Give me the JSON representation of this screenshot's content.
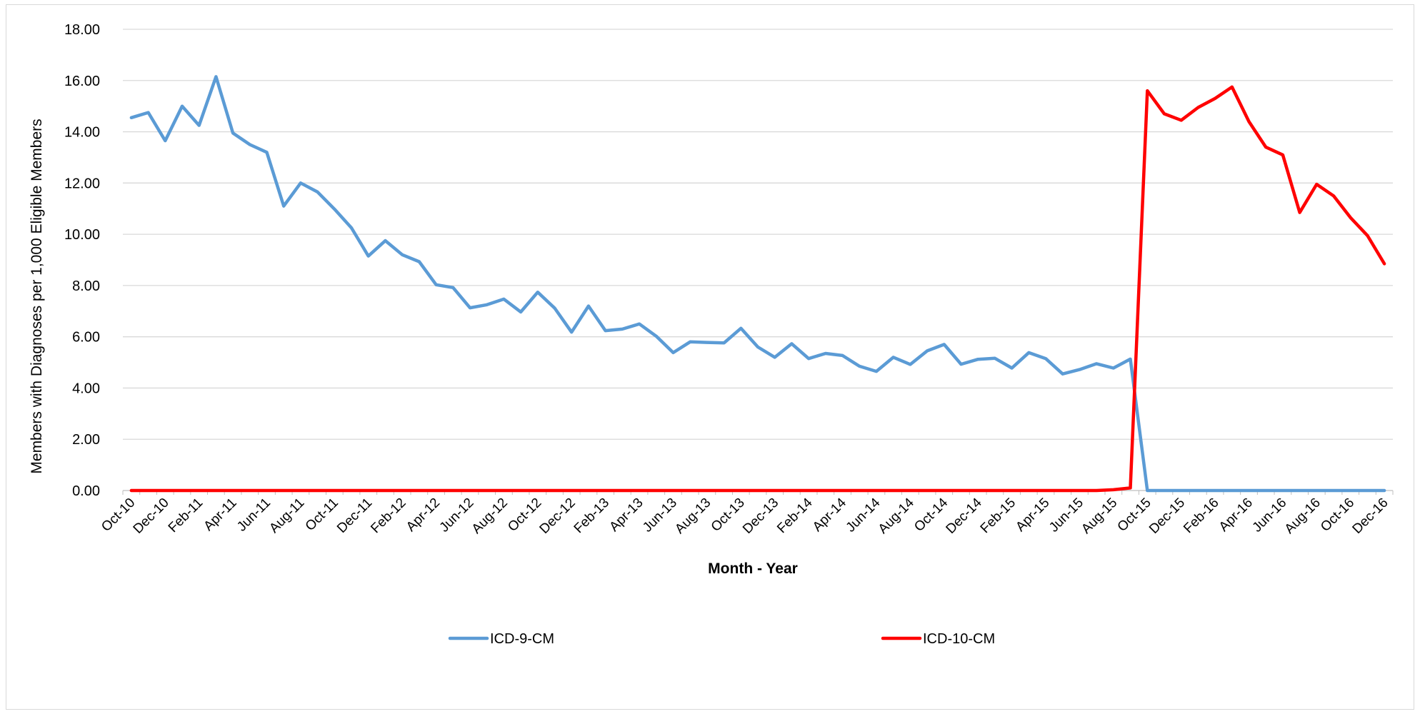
{
  "chart_data": {
    "type": "line",
    "xlabel": "Month - Year",
    "ylabel": "Members with Diagnoses per 1,000 Eligible Members",
    "ylim": [
      0,
      18
    ],
    "yticks": [
      "0.00",
      "2.00",
      "4.00",
      "6.00",
      "8.00",
      "10.00",
      "12.00",
      "14.00",
      "16.00",
      "18.00"
    ],
    "grid": true,
    "legend_position": "bottom",
    "categories": [
      "Oct-10",
      "Nov-10",
      "Dec-10",
      "Jan-11",
      "Feb-11",
      "Mar-11",
      "Apr-11",
      "May-11",
      "Jun-11",
      "Jul-11",
      "Aug-11",
      "Sep-11",
      "Oct-11",
      "Nov-11",
      "Dec-11",
      "Jan-12",
      "Feb-12",
      "Mar-12",
      "Apr-12",
      "May-12",
      "Jun-12",
      "Jul-12",
      "Aug-12",
      "Sep-12",
      "Oct-12",
      "Nov-12",
      "Dec-12",
      "Jan-13",
      "Feb-13",
      "Mar-13",
      "Apr-13",
      "May-13",
      "Jun-13",
      "Jul-13",
      "Aug-13",
      "Sep-13",
      "Oct-13",
      "Nov-13",
      "Dec-13",
      "Jan-14",
      "Feb-14",
      "Mar-14",
      "Apr-14",
      "May-14",
      "Jun-14",
      "Jul-14",
      "Aug-14",
      "Sep-14",
      "Oct-14",
      "Nov-14",
      "Dec-14",
      "Jan-15",
      "Feb-15",
      "Mar-15",
      "Apr-15",
      "May-15",
      "Jun-15",
      "Jul-15",
      "Aug-15",
      "Sep-15",
      "Oct-15",
      "Nov-15",
      "Dec-15",
      "Jan-16",
      "Feb-16",
      "Mar-16",
      "Apr-16",
      "May-16",
      "Jun-16",
      "Jul-16",
      "Aug-16",
      "Sep-16",
      "Oct-16",
      "Nov-16",
      "Dec-16"
    ],
    "tick_labels": [
      "Oct-10",
      "Dec-10",
      "Feb-11",
      "Apr-11",
      "Jun-11",
      "Aug-11",
      "Oct-11",
      "Dec-11",
      "Feb-12",
      "Apr-12",
      "Jun-12",
      "Aug-12",
      "Oct-12",
      "Dec-12",
      "Feb-13",
      "Apr-13",
      "Jun-13",
      "Aug-13",
      "Oct-13",
      "Dec-13",
      "Feb-14",
      "Apr-14",
      "Jun-14",
      "Aug-14",
      "Oct-14",
      "Dec-14",
      "Feb-15",
      "Apr-15",
      "Jun-15",
      "Aug-15",
      "Oct-15",
      "Dec-15",
      "Feb-16",
      "Apr-16",
      "Jun-16",
      "Aug-16",
      "Oct-16",
      "Dec-16"
    ],
    "series": [
      {
        "name": "ICD-9-CM",
        "color": "#5b9bd5",
        "values": [
          14.55,
          14.75,
          13.65,
          15.0,
          14.25,
          16.15,
          13.95,
          13.5,
          13.2,
          11.1,
          12.0,
          11.65,
          10.98,
          10.25,
          9.15,
          9.75,
          9.2,
          8.93,
          8.03,
          7.92,
          7.13,
          7.25,
          7.47,
          6.97,
          7.74,
          7.12,
          6.18,
          7.2,
          6.24,
          6.3,
          6.5,
          6.02,
          5.38,
          5.8,
          5.78,
          5.76,
          6.33,
          5.6,
          5.2,
          5.73,
          5.15,
          5.35,
          5.27,
          4.85,
          4.65,
          5.2,
          4.92,
          5.45,
          5.7,
          4.93,
          5.12,
          5.16,
          4.78,
          5.38,
          5.15,
          4.55,
          4.72,
          4.95,
          4.78,
          5.13,
          0.0,
          0.0,
          0.0,
          0.0,
          0.0,
          0.0,
          0.0,
          0.0,
          0.0,
          0.0,
          0.0,
          0.0,
          0.0,
          0.0,
          0.0
        ]
      },
      {
        "name": "ICD-10-CM",
        "color": "#ff0000",
        "values": [
          0,
          0,
          0,
          0,
          0,
          0,
          0,
          0,
          0,
          0,
          0,
          0,
          0,
          0,
          0,
          0,
          0,
          0,
          0,
          0,
          0,
          0,
          0,
          0,
          0,
          0,
          0,
          0,
          0,
          0,
          0,
          0,
          0,
          0,
          0,
          0,
          0,
          0,
          0,
          0,
          0,
          0,
          0,
          0,
          0,
          0,
          0,
          0,
          0,
          0,
          0,
          0,
          0,
          0,
          0,
          0,
          0,
          0,
          0.03,
          0.1,
          15.6,
          14.7,
          14.45,
          14.95,
          15.3,
          15.75,
          14.4,
          13.4,
          13.1,
          10.85,
          11.95,
          11.5,
          10.65,
          9.95,
          8.85
        ]
      }
    ]
  }
}
